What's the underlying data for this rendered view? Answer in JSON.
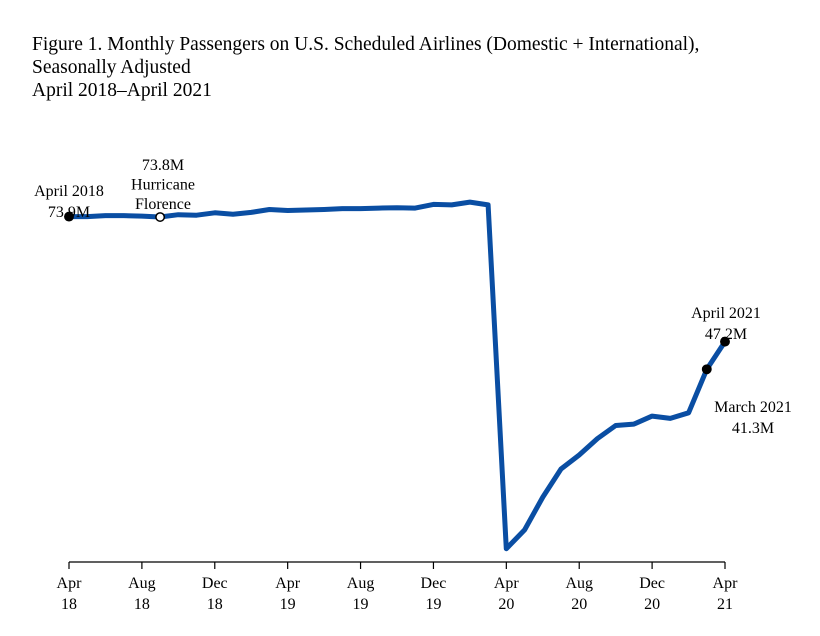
{
  "title": {
    "line1": "Figure 1. Monthly Passengers on U.S. Scheduled Airlines (Domestic + International),",
    "line2": "Seasonally Adjusted",
    "line3": "April 2018–April 2021"
  },
  "colors": {
    "line": "#0a4ea3",
    "axis": "#000000",
    "marker_fill": "#000000",
    "marker_open": "#ffffff"
  },
  "chart_data": {
    "type": "line",
    "title": "Figure 1. Monthly Passengers on U.S. Scheduled Airlines (Domestic + International), Seasonally Adjusted April 2018–April 2021",
    "xlabel": "",
    "ylabel": "",
    "grid": false,
    "x_ticks": [
      {
        "month_index": 0,
        "line1": "Apr",
        "line2": "18"
      },
      {
        "month_index": 4,
        "line1": "Aug",
        "line2": "18"
      },
      {
        "month_index": 8,
        "line1": "Dec",
        "line2": "18"
      },
      {
        "month_index": 12,
        "line1": "Apr",
        "line2": "19"
      },
      {
        "month_index": 16,
        "line1": "Aug",
        "line2": "19"
      },
      {
        "month_index": 20,
        "line1": "Dec",
        "line2": "19"
      },
      {
        "month_index": 24,
        "line1": "Apr",
        "line2": "20"
      },
      {
        "month_index": 28,
        "line1": "Aug",
        "line2": "20"
      },
      {
        "month_index": 32,
        "line1": "Dec",
        "line2": "20"
      },
      {
        "month_index": 36,
        "line1": "Apr",
        "line2": "21"
      }
    ],
    "ylim": [
      2.5,
      80
    ],
    "series": [
      {
        "x": [
          "2018-04",
          "2018-05",
          "2018-06",
          "2018-07",
          "2018-08",
          "2018-09",
          "2018-10",
          "2018-11",
          "2018-12",
          "2019-01",
          "2019-02",
          "2019-03",
          "2019-04",
          "2019-05",
          "2019-06",
          "2019-07",
          "2019-08",
          "2019-09",
          "2019-10",
          "2019-11",
          "2019-12",
          "2020-01",
          "2020-02",
          "2020-03",
          "2020-04",
          "2020-05",
          "2020-06",
          "2020-07",
          "2020-08",
          "2020-09",
          "2020-10",
          "2020-11",
          "2020-12",
          "2021-01",
          "2021-02",
          "2021-03",
          "2021-04"
        ],
        "values": [
          73.9,
          73.9,
          74.1,
          74.1,
          74.0,
          73.8,
          74.3,
          74.2,
          74.7,
          74.4,
          74.8,
          75.4,
          75.2,
          75.3,
          75.4,
          75.6,
          75.6,
          75.7,
          75.8,
          75.7,
          76.5,
          76.4,
          77.0,
          76.4,
          3.0,
          7.0,
          14.0,
          20.0,
          23.0,
          26.5,
          29.3,
          29.6,
          31.3,
          30.8,
          32.0,
          41.3,
          47.2
        ]
      }
    ],
    "annotations": [
      {
        "month_index": 0,
        "lines": [
          "April 2018",
          "73.9M"
        ],
        "marker": "filled"
      },
      {
        "month_index": 5,
        "lines": [
          "73.8M",
          "Hurricane",
          "Florence"
        ],
        "marker": "open"
      },
      {
        "month_index": 36,
        "lines": [
          "April 2021",
          "47.2M"
        ],
        "marker": "filled"
      },
      {
        "month_index": 35,
        "lines": [
          "March 2021",
          "41.3M"
        ],
        "marker": "filled"
      }
    ]
  }
}
